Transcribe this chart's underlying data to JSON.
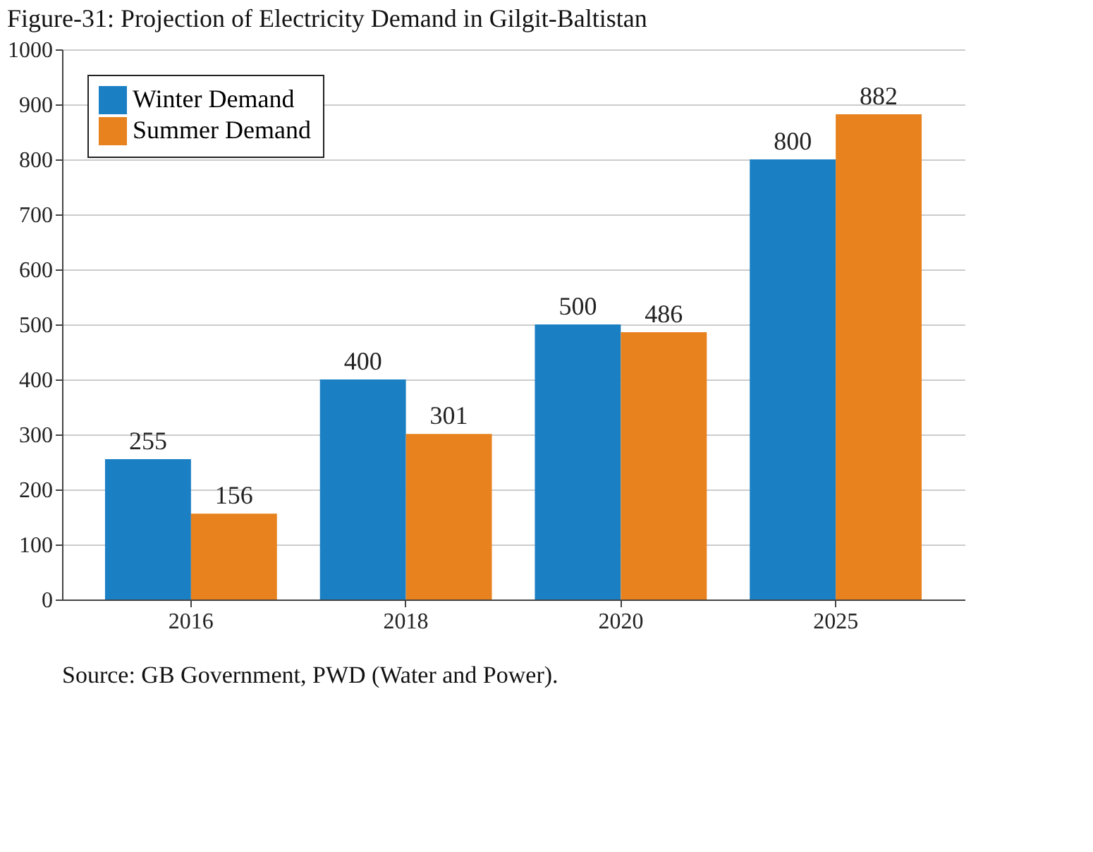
{
  "chart_data": {
    "type": "bar",
    "title": "Figure-31: Projection of Electricity Demand in Gilgit-Baltistan",
    "categories": [
      "2016",
      "2018",
      "2020",
      "2025"
    ],
    "series": [
      {
        "name": "Winter Demand",
        "color": "#1b7fc4",
        "values": [
          255,
          400,
          500,
          800
        ]
      },
      {
        "name": "Summer Demand",
        "color": "#e8821e",
        "values": [
          156,
          301,
          486,
          882
        ]
      }
    ],
    "ylim": [
      0,
      1000
    ],
    "yticks": [
      0,
      100,
      200,
      300,
      400,
      500,
      600,
      700,
      800,
      900,
      1000
    ],
    "grid": "y",
    "legend": "top left",
    "data_labels": true,
    "annotations": [
      "Source: GB Government, PWD (Water and Power)."
    ]
  }
}
